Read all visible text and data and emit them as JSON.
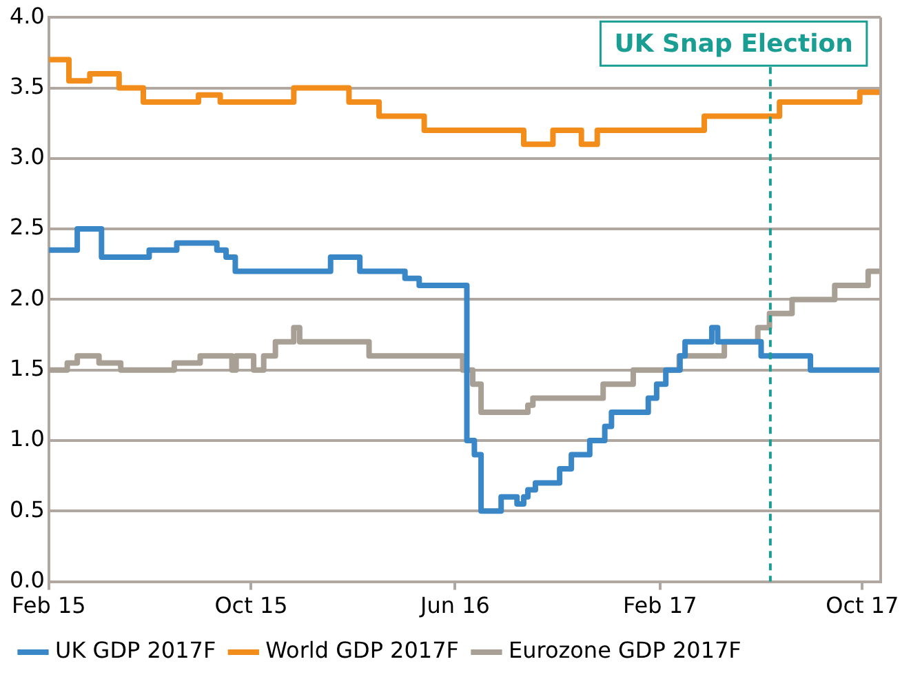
{
  "chart_data": {
    "type": "step",
    "xlim": [
      "2015-02-01",
      "2017-10-23"
    ],
    "ylim": [
      0,
      4
    ],
    "xticks": [
      {
        "value": "2015-02",
        "label": "Feb 15"
      },
      {
        "value": "2015-10",
        "label": "Oct 15"
      },
      {
        "value": "2016-06",
        "label": "Jun 16"
      },
      {
        "value": "2017-02",
        "label": "Feb 17"
      },
      {
        "value": "2017-10",
        "label": "Oct 17"
      }
    ],
    "yticks": [
      {
        "value": 0,
        "label": "0.0"
      },
      0.5,
      {
        "value": 1,
        "label": "1.0"
      },
      1.5,
      {
        "value": 2,
        "label": "2.0"
      },
      2.5,
      {
        "value": 3,
        "label": "3.0"
      },
      3.5,
      {
        "value": 4,
        "label": "4.0"
      }
    ],
    "grid": "y",
    "legend": "bottom",
    "marker": "none",
    "series": [
      {
        "name": "UK GDP 2017F",
        "color": "#3a87c8",
        "x": [
          "2015-02-01",
          "2015-03-07",
          "2015-04-05",
          "2015-06-01",
          "2015-07-04",
          "2015-08-21",
          "2015-09-01",
          "2015-09-12",
          "2016-01-04",
          "2016-02-08",
          "2016-04-02",
          "2016-04-19",
          "2016-06-15",
          "2016-06-24",
          "2016-07-02",
          "2016-07-26",
          "2016-08-14",
          "2016-08-22",
          "2016-08-27",
          "2016-09-05",
          "2016-10-04",
          "2016-10-18",
          "2016-11-09",
          "2016-11-27",
          "2016-12-05",
          "2017-01-18",
          "2017-01-28",
          "2017-02-08",
          "2017-02-25",
          "2017-03-03",
          "2017-04-04",
          "2017-04-11",
          "2017-06-02",
          "2017-07-31",
          "2017-10-23"
        ],
        "values": [
          2.35,
          2.5,
          2.3,
          2.35,
          2.4,
          2.35,
          2.3,
          2.2,
          2.3,
          2.2,
          2.15,
          2.1,
          1.0,
          0.9,
          0.5,
          0.6,
          0.55,
          0.6,
          0.65,
          0.7,
          0.8,
          0.9,
          1.0,
          1.1,
          1.2,
          1.3,
          1.4,
          1.5,
          1.6,
          1.7,
          1.8,
          1.7,
          1.6,
          1.5,
          1.5
        ]
      },
      {
        "name": "World GDP 2017F",
        "color": "#f28c1a",
        "x": [
          "2015-02-01",
          "2015-02-25",
          "2015-03-22",
          "2015-04-26",
          "2015-05-25",
          "2015-07-30",
          "2015-08-25",
          "2015-11-21",
          "2016-01-26",
          "2016-03-02",
          "2016-04-25",
          "2016-08-22",
          "2016-09-26",
          "2016-10-30",
          "2016-11-18",
          "2017-03-26",
          "2017-06-24",
          "2017-09-28",
          "2017-10-23"
        ],
        "values": [
          3.7,
          3.55,
          3.6,
          3.5,
          3.4,
          3.45,
          3.4,
          3.5,
          3.4,
          3.3,
          3.2,
          3.1,
          3.2,
          3.1,
          3.2,
          3.3,
          3.4,
          3.47,
          3.47
        ]
      },
      {
        "name": "Eurozone GDP 2017F",
        "color": "#a89f95",
        "x": [
          "2015-02-01",
          "2015-02-23",
          "2015-03-07",
          "2015-04-02",
          "2015-04-28",
          "2015-07-01",
          "2015-08-01",
          "2015-09-08",
          "2015-09-13",
          "2015-10-04",
          "2015-10-16",
          "2015-10-30",
          "2015-11-21",
          "2015-11-28",
          "2016-02-19",
          "2016-06-10",
          "2016-06-22",
          "2016-07-02",
          "2016-08-27",
          "2016-09-02",
          "2016-11-25",
          "2016-12-31",
          "2017-02-24",
          "2017-04-19",
          "2017-05-29",
          "2017-06-12",
          "2017-07-09",
          "2017-08-29",
          "2017-10-08",
          "2017-10-23"
        ],
        "values": [
          1.5,
          1.55,
          1.6,
          1.55,
          1.5,
          1.55,
          1.6,
          1.5,
          1.6,
          1.5,
          1.6,
          1.7,
          1.8,
          1.7,
          1.6,
          1.5,
          1.4,
          1.2,
          1.25,
          1.3,
          1.4,
          1.5,
          1.6,
          1.7,
          1.8,
          1.9,
          2.0,
          2.1,
          2.2,
          2.2
        ]
      }
    ],
    "ref_lines": [
      {
        "axis": "x",
        "value": "2017-06-13",
        "label": "UK Snap Election",
        "color": "#1a9e94",
        "line_style": "dashed"
      }
    ]
  }
}
